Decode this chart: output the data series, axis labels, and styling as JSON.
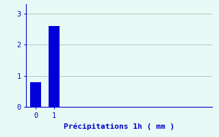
{
  "categories": [
    0,
    1
  ],
  "values": [
    0.8,
    2.6
  ],
  "bar_color": "#0000dd",
  "background_color": "#e8faf5",
  "xlabel": "Précipitations 1h ( mm )",
  "xlabel_color": "#0000cc",
  "xlabel_fontsize": 8,
  "tick_color": "#0000cc",
  "tick_fontsize": 7.5,
  "ylim": [
    0,
    3.3
  ],
  "yticks": [
    0,
    1,
    2,
    3
  ],
  "grid_color": "#b0c8c0",
  "bar_width": 0.6,
  "xlim": [
    -0.5,
    9.5
  ]
}
